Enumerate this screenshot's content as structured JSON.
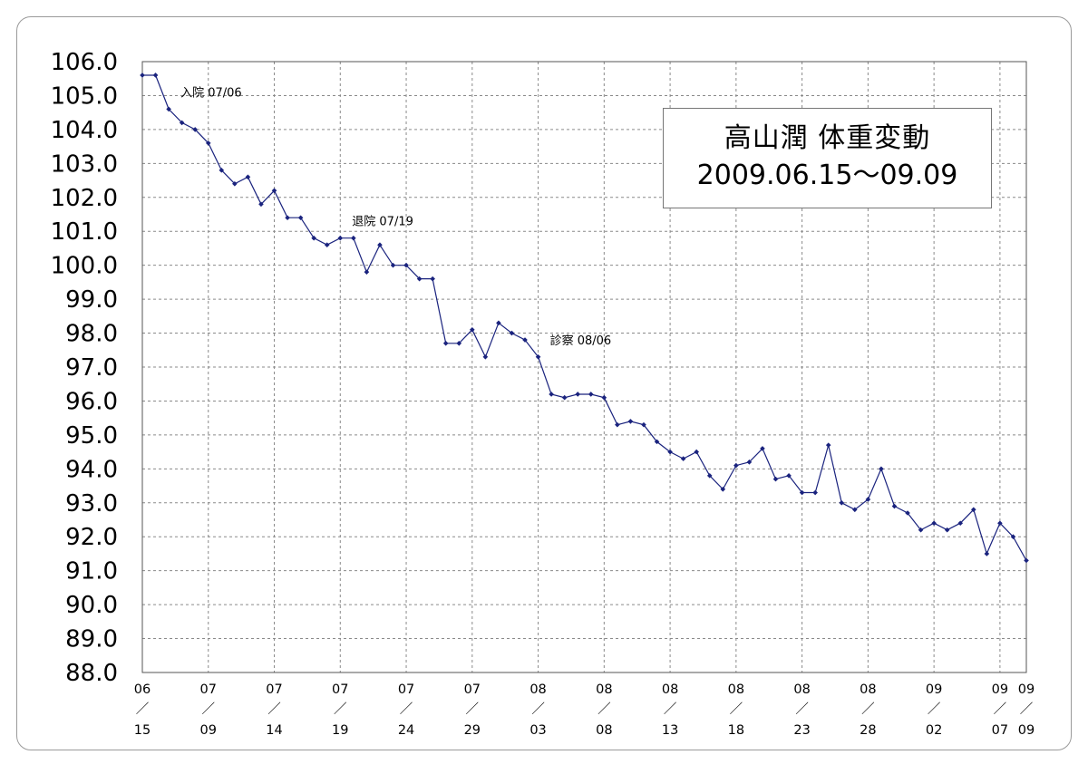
{
  "chart_data": {
    "type": "line",
    "title": "高山潤 体重変動",
    "subtitle": "2009.06.15～09.09",
    "y_ticks": [
      "106.0",
      "105.0",
      "104.0",
      "103.0",
      "102.0",
      "101.0",
      "100.0",
      "99.0",
      "98.0",
      "97.0",
      "96.0",
      "95.0",
      "94.0",
      "93.0",
      "92.0",
      "91.0",
      "90.0",
      "89.0",
      "88.0"
    ],
    "ylim": [
      88,
      106
    ],
    "x_ticks": [
      {
        "month": "06",
        "day": "15"
      },
      {
        "month": "07",
        "day": "09"
      },
      {
        "month": "07",
        "day": "14"
      },
      {
        "month": "07",
        "day": "19"
      },
      {
        "month": "07",
        "day": "24"
      },
      {
        "month": "07",
        "day": "29"
      },
      {
        "month": "08",
        "day": "03"
      },
      {
        "month": "08",
        "day": "08"
      },
      {
        "month": "08",
        "day": "13"
      },
      {
        "month": "08",
        "day": "18"
      },
      {
        "month": "08",
        "day": "23"
      },
      {
        "month": "08",
        "day": "28"
      },
      {
        "month": "09",
        "day": "02"
      },
      {
        "month": "09",
        "day": "07"
      },
      {
        "month": "09",
        "day": "09"
      }
    ],
    "x_tick_separator": "／",
    "grid": true,
    "series": [
      {
        "color": "#1a237e",
        "values": [
          105.6,
          105.6,
          104.6,
          104.2,
          104.0,
          103.6,
          102.8,
          102.4,
          102.6,
          101.8,
          102.2,
          101.4,
          101.4,
          100.8,
          100.6,
          100.8,
          100.8,
          99.8,
          100.6,
          100.0,
          100.0,
          99.6,
          99.6,
          97.7,
          97.7,
          98.1,
          97.3,
          98.3,
          98.0,
          97.8,
          97.3,
          96.2,
          96.1,
          96.2,
          96.2,
          96.1,
          95.3,
          95.4,
          95.3,
          94.8,
          94.5,
          94.3,
          94.5,
          93.8,
          93.4,
          94.1,
          94.2,
          94.6,
          93.7,
          93.8,
          93.3,
          93.3,
          94.7,
          93.0,
          92.8,
          93.1,
          94.0,
          92.9,
          92.7,
          92.2,
          92.4,
          92.2,
          92.4,
          92.8,
          91.5,
          92.4,
          92.0,
          91.3
        ]
      }
    ],
    "annotations": [
      {
        "text": "入院 07/06",
        "point_index": 2
      },
      {
        "text": "退院 07/19",
        "point_index": 15
      },
      {
        "text": "診察 08/06",
        "point_index": 30
      }
    ]
  }
}
